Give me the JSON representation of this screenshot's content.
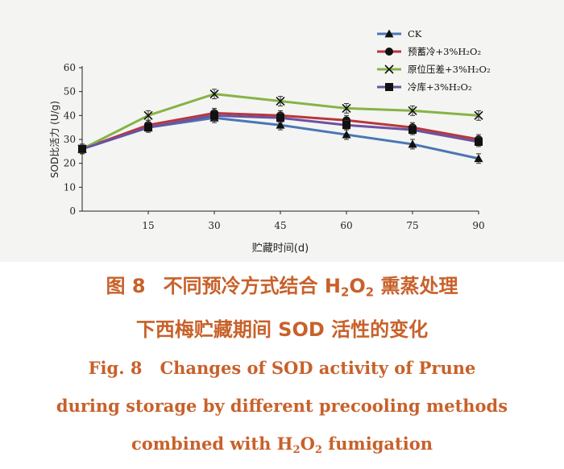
{
  "chart_data": {
    "type": "line",
    "title": "",
    "xlabel": "贮藏时间(d)",
    "ylabel": "SOD比活力 (U/g)",
    "x": [
      0,
      15,
      30,
      45,
      60,
      75,
      90
    ],
    "x_ticks": [
      "15",
      "30",
      "45",
      "60",
      "75",
      "90"
    ],
    "y_ticks": [
      "0",
      "10",
      "20",
      "30",
      "40",
      "50",
      "60"
    ],
    "xlim": [
      0,
      90
    ],
    "ylim": [
      0,
      60
    ],
    "grid": false,
    "legend_position": "top-right",
    "series": [
      {
        "name": "CK",
        "marker": "triangle",
        "color": "#4a76b5",
        "values": [
          26,
          35,
          39,
          36,
          32,
          28,
          22
        ],
        "errors": [
          2,
          2,
          2,
          2,
          2,
          2,
          2
        ]
      },
      {
        "name": "预蓄冷+3%H₂O₂",
        "marker": "circle",
        "color": "#b8363c",
        "values": [
          26,
          36,
          41,
          40,
          38,
          35,
          30
        ],
        "errors": [
          2,
          2,
          2,
          2,
          2,
          2,
          2
        ]
      },
      {
        "name": "原位压差+3%H₂O₂",
        "marker": "x",
        "color": "#86b346",
        "values": [
          26,
          40,
          49,
          46,
          43,
          42,
          40
        ],
        "errors": [
          2,
          2,
          2,
          2,
          2,
          2,
          2
        ]
      },
      {
        "name": "冷库+3%H₂O₂",
        "marker": "square",
        "color": "#6b52a0",
        "values": [
          26,
          35,
          40,
          39,
          36,
          34,
          29
        ],
        "errors": [
          2,
          2,
          2,
          2,
          2,
          2,
          2
        ]
      }
    ]
  },
  "caption": {
    "cn_line1_fig": "图 8",
    "cn_line1_a": "不同预冷方式结合 H",
    "cn_line1_sub1": "2",
    "cn_line1_b": "O",
    "cn_line1_sub2": "2",
    "cn_line1_c": " 熏蒸处理",
    "cn_line2": "下西梅贮藏期间 SOD 活性的变化",
    "en_line1_fig": "Fig. 8",
    "en_line1": "Changes of SOD activity of Prune",
    "en_line2": "during storage by different precooling methods",
    "en_line3_a": "combined with H",
    "en_line3_sub1": "2",
    "en_line3_b": "O",
    "en_line3_sub2": "2",
    "en_line3_c": " fumigation"
  }
}
